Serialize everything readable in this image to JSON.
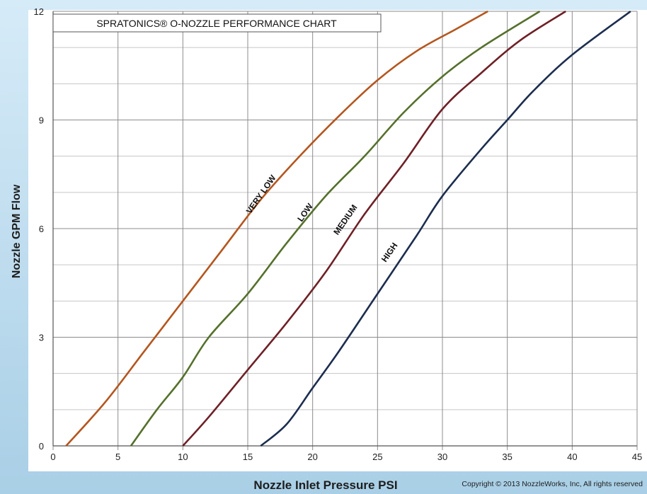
{
  "chart_data": {
    "type": "line",
    "title": "SPRATONICS® O-NOZZLE PERFORMANCE CHART",
    "xlabel": "Nozzle Inlet Pressure PSI",
    "ylabel": "Nozzle GPM Flow",
    "xlim": [
      0,
      45
    ],
    "ylim": [
      0,
      12
    ],
    "x_ticks": [
      0,
      5,
      10,
      15,
      20,
      25,
      30,
      35,
      40,
      45
    ],
    "y_ticks": [
      0,
      3,
      6,
      9,
      12
    ],
    "grid": true,
    "series": [
      {
        "name": "VERY LOW",
        "color": "#b4561f",
        "points": [
          [
            1,
            0
          ],
          [
            4,
            1.2
          ],
          [
            7,
            2.6
          ],
          [
            10,
            4.0
          ],
          [
            13,
            5.4
          ],
          [
            16,
            6.8
          ],
          [
            19,
            8.0
          ],
          [
            22,
            9.1
          ],
          [
            25,
            10.1
          ],
          [
            28,
            10.9
          ],
          [
            31,
            11.5
          ],
          [
            33.5,
            12.0
          ]
        ]
      },
      {
        "name": "LOW",
        "color": "#55702c",
        "points": [
          [
            6,
            0
          ],
          [
            8,
            1.0
          ],
          [
            10,
            1.9
          ],
          [
            12,
            3.0
          ],
          [
            15,
            4.2
          ],
          [
            18,
            5.6
          ],
          [
            21,
            6.9
          ],
          [
            24,
            8.0
          ],
          [
            27,
            9.2
          ],
          [
            30,
            10.2
          ],
          [
            33,
            11.0
          ],
          [
            37.5,
            12.0
          ]
        ]
      },
      {
        "name": "MEDIUM",
        "color": "#6e2027",
        "points": [
          [
            10,
            0
          ],
          [
            12,
            0.8
          ],
          [
            15,
            2.1
          ],
          [
            18,
            3.4
          ],
          [
            21,
            4.8
          ],
          [
            24,
            6.4
          ],
          [
            27,
            7.8
          ],
          [
            30,
            9.3
          ],
          [
            33,
            10.3
          ],
          [
            36,
            11.2
          ],
          [
            39.5,
            12.0
          ]
        ]
      },
      {
        "name": "HIGH",
        "color": "#1c2d4f",
        "points": [
          [
            16,
            0
          ],
          [
            18,
            0.6
          ],
          [
            20,
            1.6
          ],
          [
            22,
            2.6
          ],
          [
            25,
            4.2
          ],
          [
            28,
            5.8
          ],
          [
            30,
            6.9
          ],
          [
            33,
            8.2
          ],
          [
            35,
            9.0
          ],
          [
            37,
            9.8
          ],
          [
            40,
            10.8
          ],
          [
            44.5,
            12.0
          ]
        ]
      }
    ]
  },
  "copyright": "Copyright © 2013 NozzleWorks, Inc, All rights reserved"
}
